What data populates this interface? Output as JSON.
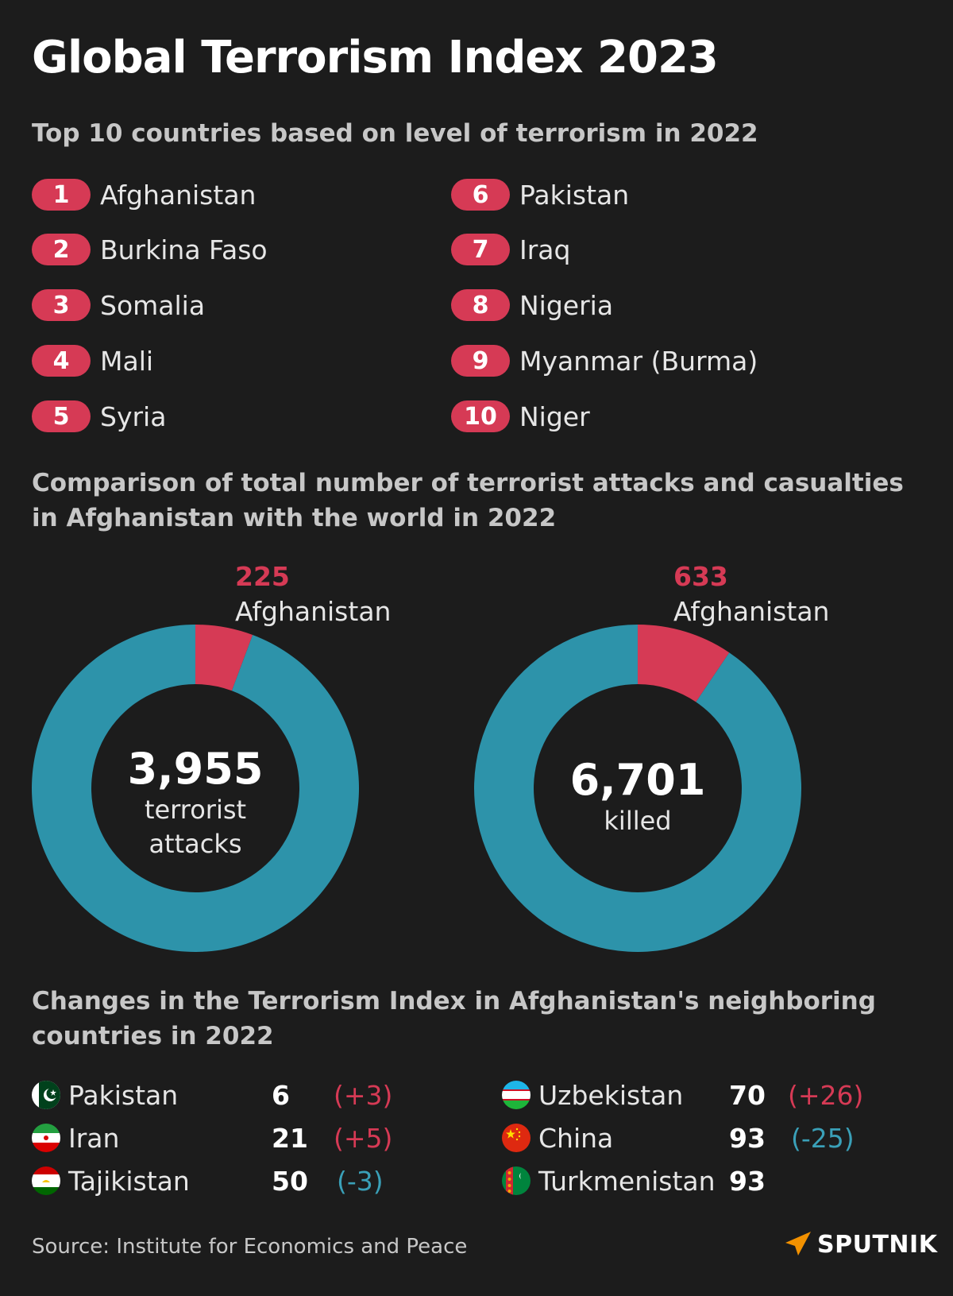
{
  "title": "Global Terrorism Index 2023",
  "section1": {
    "heading": "Top 10 countries based on level of terrorism in 2022",
    "ranks": [
      {
        "rank": "1",
        "country": "Afghanistan"
      },
      {
        "rank": "2",
        "country": "Burkina Faso"
      },
      {
        "rank": "3",
        "country": "Somalia"
      },
      {
        "rank": "4",
        "country": "Mali"
      },
      {
        "rank": "5",
        "country": "Syria"
      },
      {
        "rank": "6",
        "country": "Pakistan"
      },
      {
        "rank": "7",
        "country": "Iraq"
      },
      {
        "rank": "8",
        "country": "Nigeria"
      },
      {
        "rank": "9",
        "country": "Myanmar (Burma)"
      },
      {
        "rank": "10",
        "country": "Niger"
      }
    ]
  },
  "section2": {
    "heading": "Comparison of total number of terrorist attacks and casualties in Afghanistan with the world in 2022"
  },
  "chart_data": [
    {
      "type": "pie",
      "variant": "donut",
      "total": 3955,
      "total_label": "3,955",
      "total_caption_1": "terrorist",
      "total_caption_2": "attacks",
      "highlight_value": 225,
      "highlight_value_label": "225",
      "highlight_name": "Afghanistan",
      "colors": {
        "highlight": "#d63a55",
        "rest": "#2d93aa"
      }
    },
    {
      "type": "pie",
      "variant": "donut",
      "total": 6701,
      "total_label": "6,701",
      "total_caption_1": "killed",
      "highlight_value": 633,
      "highlight_value_label": "633",
      "highlight_name": "Afghanistan",
      "colors": {
        "highlight": "#d63a55",
        "rest": "#2d93aa"
      }
    }
  ],
  "section3": {
    "heading": "Changes in the Terrorism Index in Afghanistan's neighboring countries in 2022",
    "neighbors": [
      {
        "country": "Pakistan",
        "score": "6",
        "change": "(+3)",
        "flag": "pakistan-flag-icon"
      },
      {
        "country": "Iran",
        "score": "21",
        "change": "(+5)",
        "flag": "iran-flag-icon"
      },
      {
        "country": "Tajikistan",
        "score": "50",
        "change": "(-3)",
        "flag": "tajikistan-flag-icon"
      },
      {
        "country": "Uzbekistan",
        "score": "70",
        "change": "(+26)",
        "flag": "uzbekistan-flag-icon"
      },
      {
        "country": "China",
        "score": "93",
        "change": "(-25)",
        "flag": "china-flag-icon"
      },
      {
        "country": "Turkmenistan",
        "score": "93",
        "change": "",
        "flag": "turkmenistan-flag-icon"
      }
    ]
  },
  "footer": {
    "source": "Source: Institute for Economics and Peace",
    "logo": "SPUTNIK"
  },
  "colors": {
    "accent_red": "#d63a55",
    "accent_teal": "#2d93aa",
    "background": "#1c1c1c"
  }
}
